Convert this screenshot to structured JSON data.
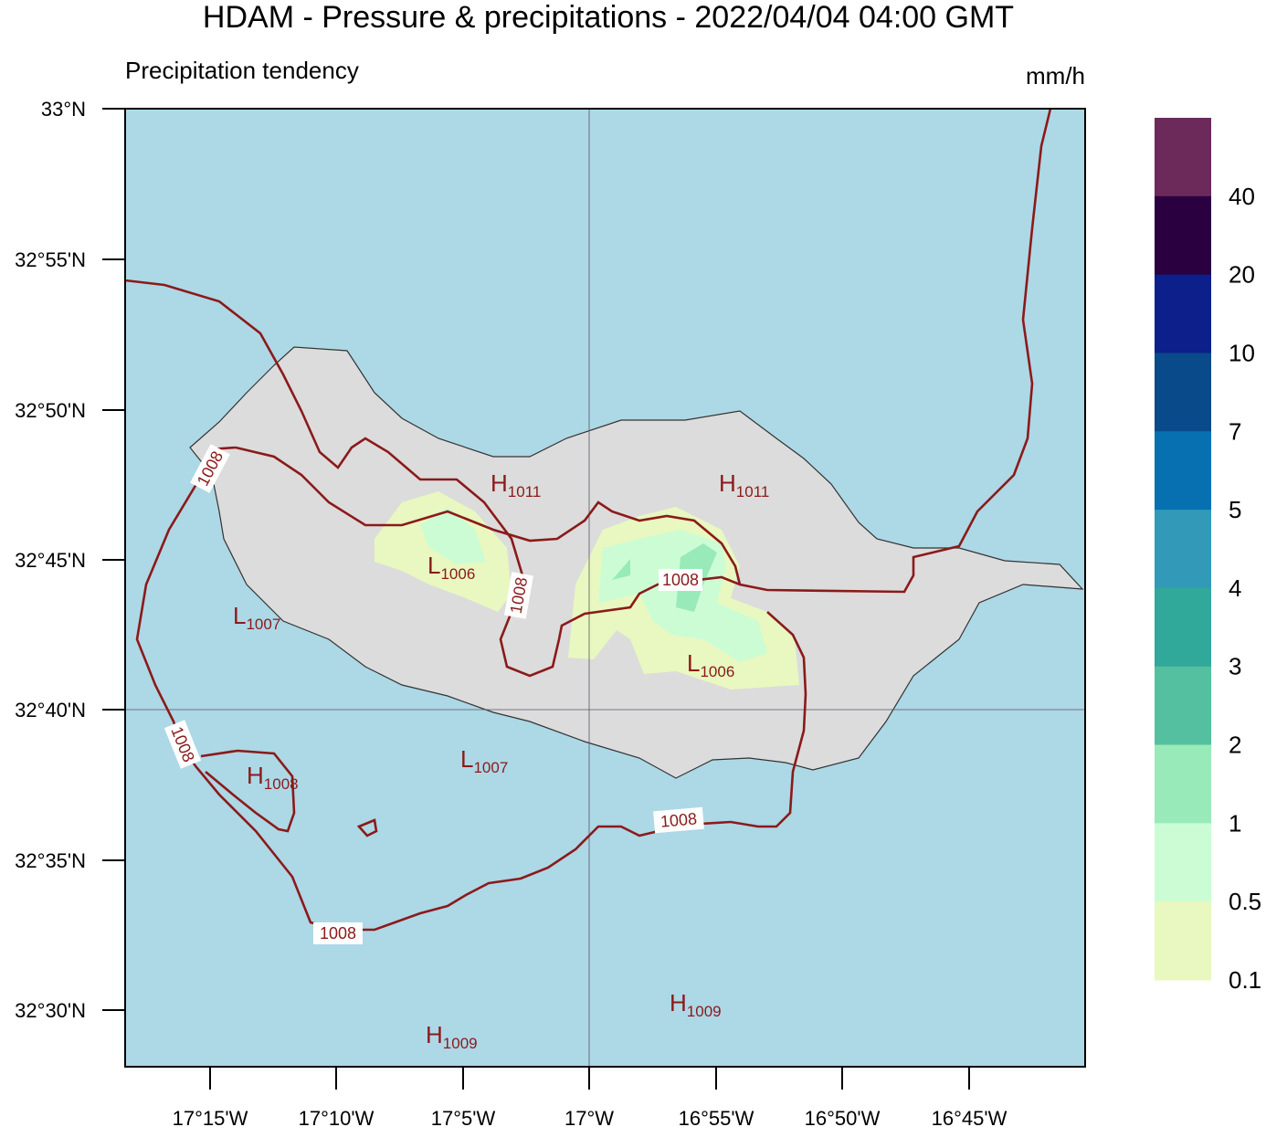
{
  "header": {
    "title": "HDAM - Pressure & precipitations  -  2022/04/04  04:00 GMT",
    "subtitle": "Precipitation tendency"
  },
  "axes": {
    "lat_labels": [
      "33°N",
      "32°55'N",
      "32°50'N",
      "32°45'N",
      "32°40'N",
      "32°35'N",
      "32°30'N"
    ],
    "lon_labels": [
      "17°15'W",
      "17°10'W",
      "17°5'W",
      "17°W",
      "16°55'W",
      "16°50'W",
      "16°45'W"
    ]
  },
  "colorbar": {
    "unit": "mm/h",
    "colors": [
      "#6b2a5a",
      "#2a0040",
      "#0c1f8a",
      "#084a8a",
      "#0670b0",
      "#3399b8",
      "#30a89a",
      "#55c0a0",
      "#98ebb8",
      "#ccfcd4",
      "#e8f8c0"
    ],
    "labels": [
      "40",
      "20",
      "10",
      "7",
      "5",
      "4",
      "3",
      "2",
      "1",
      "0.5",
      "0.1"
    ]
  },
  "isobar_labels": [
    "1008",
    "1008",
    "1008",
    "1008",
    "1008",
    "1008"
  ],
  "pressure_centers": [
    {
      "letter": "H",
      "value": "1011"
    },
    {
      "letter": "H",
      "value": "1011"
    },
    {
      "letter": "L",
      "value": "1006"
    },
    {
      "letter": "L",
      "value": "1007"
    },
    {
      "letter": "L",
      "value": "1006"
    },
    {
      "letter": "L",
      "value": "1007"
    },
    {
      "letter": "H",
      "value": "1008"
    },
    {
      "letter": "H",
      "value": "1009"
    },
    {
      "letter": "H",
      "value": "1009"
    }
  ]
}
